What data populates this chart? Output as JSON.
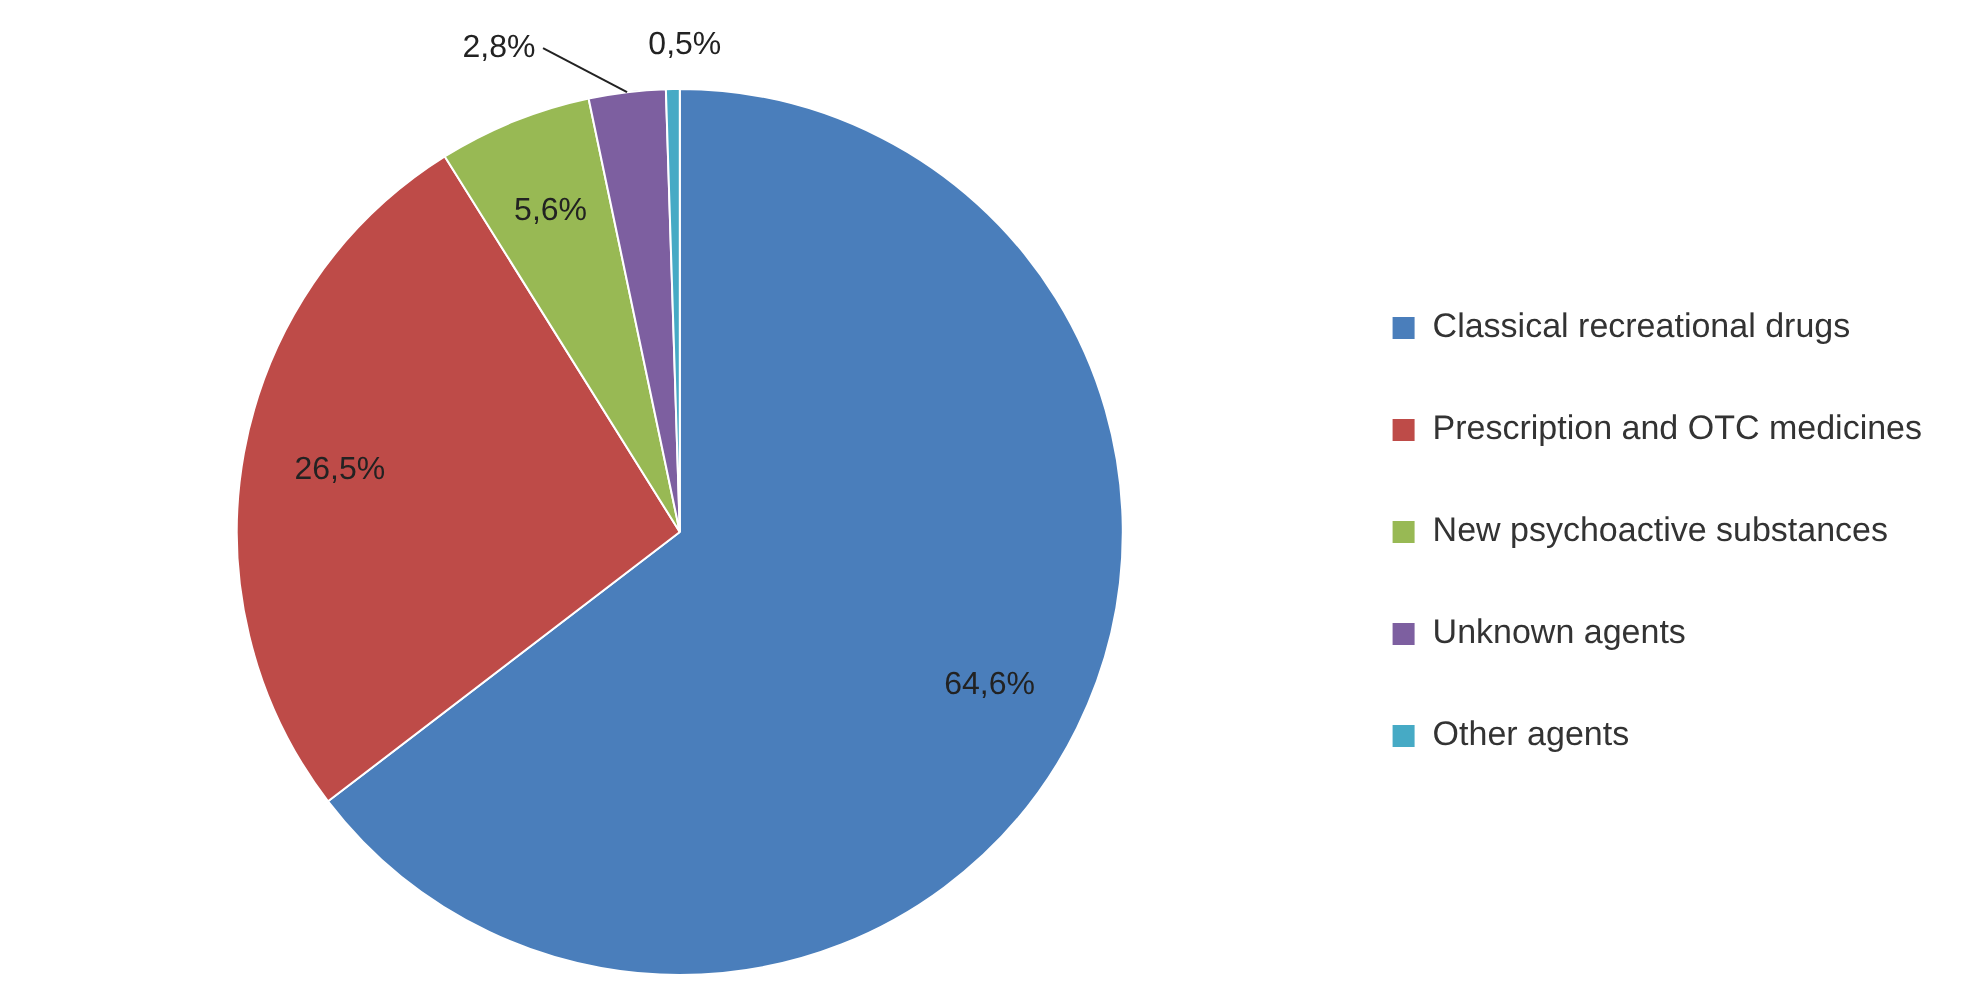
{
  "chart_data": {
    "type": "pie",
    "categories": [
      "Classical recreational drugs",
      "Prescription and OTC medicines",
      "New psychoactive substances",
      "Unknown agents",
      "Other agents"
    ],
    "values": [
      64.6,
      26.5,
      5.6,
      2.8,
      0.5
    ],
    "colors": [
      "#4a7ebb",
      "#be4b48",
      "#98b954",
      "#7d5fa0",
      "#46aac5"
    ],
    "value_labels": [
      "64,6%",
      "26,5%",
      "5,6%",
      "2,8%",
      "0,5%"
    ],
    "legend": "right"
  }
}
